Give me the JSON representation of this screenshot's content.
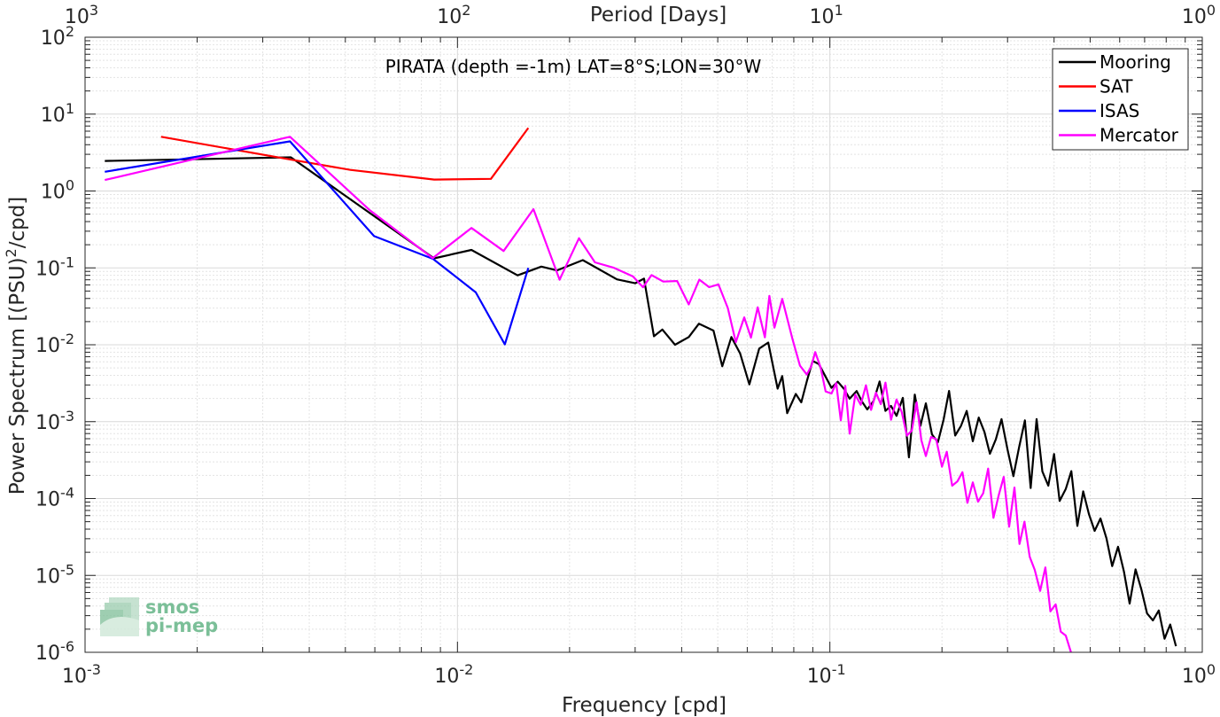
{
  "chart_data": {
    "type": "line",
    "title": "PIRATA (depth =-1m) LAT=8°S;LON=30°W",
    "xlabel": "Frequency [cpd]",
    "ylabel_main": "Power Spectrum [(PSU)",
    "ylabel_sup": "2",
    "ylabel_tail": "/cpd]",
    "top_xlabel": "Period [Days]",
    "xscale": "log",
    "yscale": "log",
    "xlim": [
      0.001,
      1
    ],
    "ylim": [
      1e-06,
      100
    ],
    "grid": true,
    "legend_position": "top-right",
    "x_ticks": [
      {
        "base": "10",
        "exp": "-3"
      },
      {
        "base": "10",
        "exp": "-2"
      },
      {
        "base": "10",
        "exp": "-1"
      },
      {
        "base": "10",
        "exp": "0"
      }
    ],
    "y_ticks": [
      {
        "base": "10",
        "exp": "-6"
      },
      {
        "base": "10",
        "exp": "-5"
      },
      {
        "base": "10",
        "exp": "-4"
      },
      {
        "base": "10",
        "exp": "-3"
      },
      {
        "base": "10",
        "exp": "-2"
      },
      {
        "base": "10",
        "exp": "-1"
      },
      {
        "base": "10",
        "exp": "0"
      },
      {
        "base": "10",
        "exp": "1"
      },
      {
        "base": "10",
        "exp": "2"
      }
    ],
    "top_ticks": [
      {
        "base": "10",
        "exp": "3"
      },
      {
        "base": "10",
        "exp": "2"
      },
      {
        "base": "10",
        "exp": "1"
      },
      {
        "base": "10",
        "exp": "0"
      }
    ],
    "series": [
      {
        "name": "Mooring",
        "color": "#000000",
        "x": [
          0.00113,
          0.00357,
          0.00865,
          0.0109,
          0.0145,
          0.0168,
          0.0185,
          0.0217,
          0.0268,
          0.03,
          0.0317,
          0.0337,
          0.0355,
          0.0384,
          0.0418,
          0.0445,
          0.0487,
          0.0514,
          0.0544,
          0.0574,
          0.0608,
          0.0646,
          0.0683,
          0.0724,
          0.0745,
          0.0768,
          0.081,
          0.0838,
          0.0869,
          0.0899,
          0.0934,
          0.097,
          0.101,
          0.105,
          0.109,
          0.113,
          0.118,
          0.122,
          0.126,
          0.131,
          0.136,
          0.141,
          0.146,
          0.151,
          0.157,
          0.163,
          0.169,
          0.175,
          0.181,
          0.188,
          0.195,
          0.202,
          0.209,
          0.217,
          0.225,
          0.233,
          0.242,
          0.251,
          0.26,
          0.269,
          0.279,
          0.289,
          0.3,
          0.311,
          0.322,
          0.334,
          0.346,
          0.359,
          0.372,
          0.386,
          0.4,
          0.414,
          0.43,
          0.445,
          0.462,
          0.479,
          0.496,
          0.514,
          0.533,
          0.553,
          0.573,
          0.594,
          0.616,
          0.638,
          0.662,
          0.686,
          0.711,
          0.737,
          0.764,
          0.792,
          0.82,
          0.85
        ],
        "y": [
          2.46,
          2.74,
          0.133,
          0.171,
          0.08,
          0.104,
          0.0926,
          0.126,
          0.071,
          0.0631,
          0.0724,
          0.0129,
          0.0158,
          0.01,
          0.0126,
          0.0188,
          0.0153,
          0.00525,
          0.0126,
          0.00776,
          0.00305,
          0.00891,
          0.0107,
          0.00269,
          0.00392,
          0.00129,
          0.00229,
          0.00178,
          0.00347,
          0.00616,
          0.00562,
          0.00398,
          0.00275,
          0.00331,
          0.00269,
          0.00199,
          0.0025,
          0.00182,
          0.00144,
          0.00186,
          0.00333,
          0.00138,
          0.0016,
          0.00119,
          0.00204,
          0.000344,
          0.00225,
          0.00088,
          0.00173,
          0.000683,
          0.000539,
          0.00106,
          0.00251,
          0.00066,
          0.000885,
          0.00138,
          0.000555,
          0.00113,
          0.000736,
          0.000382,
          0.000589,
          0.00108,
          0.000433,
          0.000195,
          0.000457,
          0.00104,
          0.000137,
          0.00108,
          0.000225,
          0.000147,
          0.000379,
          9.3e-05,
          0.000133,
          0.000227,
          4.4e-05,
          0.000124,
          6.3e-05,
          3.8e-05,
          5.5e-05,
          3.02e-05,
          1.32e-05,
          2.36e-05,
          1.12e-05,
          4.3e-06,
          1.2e-05,
          6.6e-06,
          3.2e-06,
          2.6e-06,
          3.5e-06,
          1.5e-06,
          2.3e-06,
          1.2e-06
        ]
      },
      {
        "name": "SAT",
        "color": "#ff0000",
        "x": [
          0.0016,
          0.00357,
          0.00516,
          0.00866,
          0.0123,
          0.0155
        ],
        "y": [
          5.07,
          2.56,
          1.88,
          1.41,
          1.44,
          6.6
        ]
      },
      {
        "name": "ISAS",
        "color": "#0000ff",
        "x": [
          0.00113,
          0.00355,
          0.00597,
          0.0086,
          0.0112,
          0.0134,
          0.0155
        ],
        "y": [
          1.78,
          4.42,
          0.259,
          0.131,
          0.048,
          0.0101,
          0.0998
        ]
      },
      {
        "name": "Mercator",
        "color": "#ff00ff",
        "x": [
          0.00113,
          0.00355,
          0.00582,
          0.00858,
          0.0109,
          0.0133,
          0.016,
          0.0188,
          0.0212,
          0.0234,
          0.0262,
          0.0296,
          0.0315,
          0.0332,
          0.0357,
          0.0389,
          0.0418,
          0.0446,
          0.0474,
          0.0502,
          0.0532,
          0.0559,
          0.0589,
          0.0614,
          0.064,
          0.0669,
          0.0688,
          0.071,
          0.0745,
          0.0794,
          0.0831,
          0.0867,
          0.0891,
          0.0913,
          0.0944,
          0.0974,
          0.101,
          0.104,
          0.107,
          0.11,
          0.113,
          0.117,
          0.121,
          0.125,
          0.129,
          0.133,
          0.137,
          0.141,
          0.146,
          0.151,
          0.156,
          0.161,
          0.166,
          0.171,
          0.176,
          0.181,
          0.187,
          0.193,
          0.2,
          0.206,
          0.213,
          0.22,
          0.227,
          0.234,
          0.242,
          0.25,
          0.258,
          0.266,
          0.275,
          0.284,
          0.293,
          0.303,
          0.313,
          0.323,
          0.333,
          0.344,
          0.355,
          0.367,
          0.379,
          0.391,
          0.404,
          0.417,
          0.43,
          0.444
        ],
        "y": [
          1.39,
          5.08,
          0.561,
          0.134,
          0.331,
          0.166,
          0.581,
          0.0701,
          0.243,
          0.118,
          0.101,
          0.0775,
          0.056,
          0.0806,
          0.0664,
          0.0675,
          0.0335,
          0.0703,
          0.0561,
          0.0609,
          0.03,
          0.0108,
          0.0227,
          0.0124,
          0.0307,
          0.0125,
          0.0433,
          0.0167,
          0.0394,
          0.0117,
          0.00535,
          0.0041,
          0.00523,
          0.00802,
          0.00512,
          0.00247,
          0.00232,
          0.00317,
          0.00104,
          0.00291,
          0.000697,
          0.00224,
          0.00166,
          0.00297,
          0.00142,
          0.00238,
          0.00169,
          0.00322,
          0.00106,
          0.00194,
          0.00133,
          0.000659,
          0.000767,
          0.00178,
          0.000575,
          0.000357,
          0.000632,
          0.00059,
          0.000259,
          0.000406,
          0.000147,
          0.000167,
          0.00022,
          8.8e-05,
          0.000162,
          9.1e-05,
          0.000117,
          0.000245,
          5.6e-05,
          0.00011,
          0.000191,
          4.3e-05,
          0.000139,
          2.56e-05,
          5e-05,
          1.75e-05,
          1.18e-05,
          6.3e-06,
          1.27e-05,
          3.4e-06,
          4.2e-06,
          1.85e-06,
          1.65e-06,
          1e-06
        ]
      }
    ]
  },
  "logo": {
    "line1": "smos",
    "line2": "pi-mep"
  }
}
